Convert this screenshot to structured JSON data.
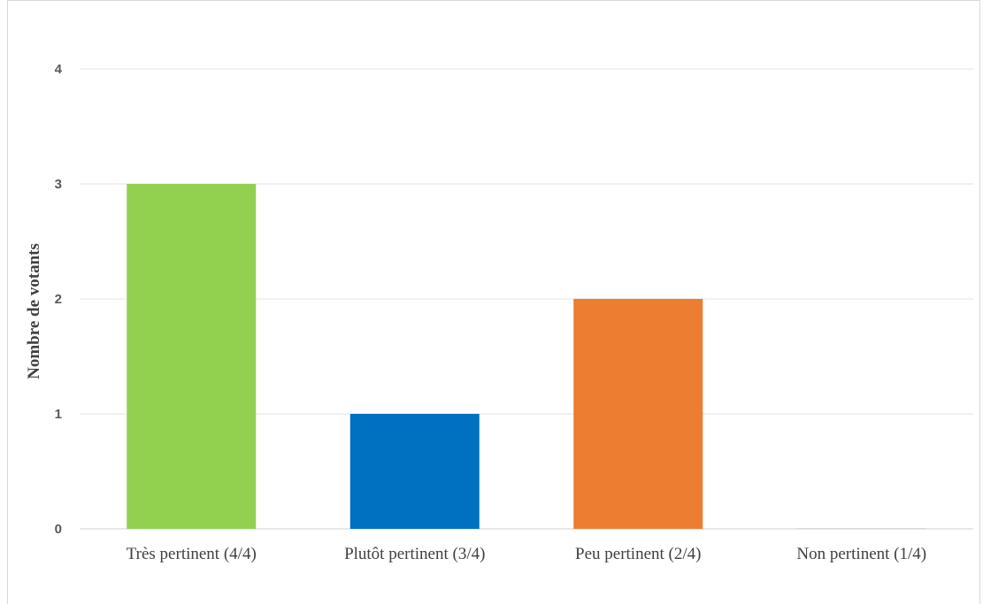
{
  "chart_data": {
    "type": "bar",
    "categories": [
      "Très pertinent  (4/4)",
      "Plutôt pertinent (3/4)",
      "Peu pertinent (2/4)",
      "Non pertinent (1/4)"
    ],
    "values": [
      3,
      1,
      2,
      0
    ],
    "colors": [
      "#92d050",
      "#0070c0",
      "#ed7d31",
      "#d9d9d9"
    ],
    "title": "",
    "xlabel": "",
    "ylabel": "Nombre de votants",
    "ylim": [
      0,
      4
    ],
    "yticks": [
      "0",
      "1",
      "2",
      "3",
      "4"
    ],
    "grid": true,
    "legend": "none"
  }
}
